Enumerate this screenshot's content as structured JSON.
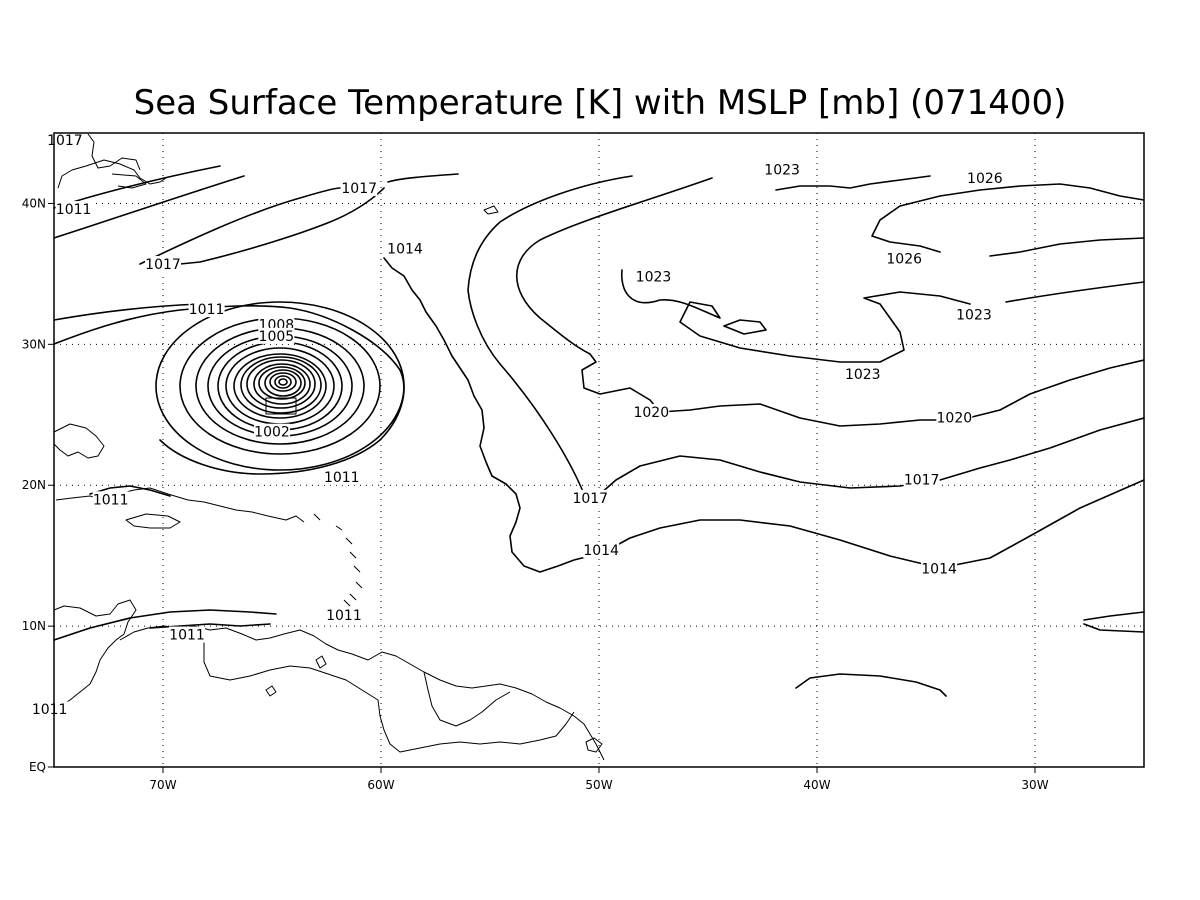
{
  "title": "Sea Surface Temperature [K] with MSLP [mb] (071400)",
  "map": {
    "lon_range": [
      -75,
      -25
    ],
    "lat_range": [
      0,
      45
    ],
    "x_ticks": [
      {
        "lon": -70,
        "label": "70W"
      },
      {
        "lon": -60,
        "label": "60W"
      },
      {
        "lon": -50,
        "label": "50W"
      },
      {
        "lon": -40,
        "label": "40W"
      },
      {
        "lon": -30,
        "label": "30W"
      }
    ],
    "y_ticks": [
      {
        "lat": 0,
        "label": "EQ"
      },
      {
        "lat": 10,
        "label": "10N"
      },
      {
        "lat": 20,
        "label": "20N"
      },
      {
        "lat": 30,
        "label": "30N"
      },
      {
        "lat": 40,
        "label": "40N"
      }
    ],
    "grid": "dotted"
  },
  "isobar_labels": [
    {
      "text": "1017",
      "lon": -74.5,
      "lat": 44.5,
      "name": "label-1017-northwest"
    },
    {
      "text": "1011",
      "lon": -74.1,
      "lat": 39.6,
      "name": "label-1011-northwest"
    },
    {
      "text": "1017",
      "lon": -61.0,
      "lat": 41.1,
      "name": "label-1017-north"
    },
    {
      "text": "1017",
      "lon": -70.0,
      "lat": 35.7,
      "name": "label-1017-west"
    },
    {
      "text": "1014",
      "lon": -58.9,
      "lat": 36.8,
      "name": "label-1014-north"
    },
    {
      "text": "1011",
      "lon": -68.0,
      "lat": 32.5,
      "name": "label-1011-center"
    },
    {
      "text": "1008",
      "lon": -64.8,
      "lat": 31.4,
      "name": "label-1008"
    },
    {
      "text": "1005",
      "lon": -64.8,
      "lat": 30.6,
      "name": "label-1005"
    },
    {
      "text": "1002",
      "lon": -65.0,
      "lat": 23.8,
      "name": "label-1002"
    },
    {
      "text": "1011",
      "lon": -61.8,
      "lat": 20.6,
      "name": "label-1011-south"
    },
    {
      "text": "1011",
      "lon": -72.4,
      "lat": 19.0,
      "name": "label-1011-caribbean"
    },
    {
      "text": "1011",
      "lon": -61.7,
      "lat": 10.8,
      "name": "label-1011-venezuela"
    },
    {
      "text": "1011",
      "lon": -68.9,
      "lat": 9.4,
      "name": "label-1011-venezuela-west"
    },
    {
      "text": "1011",
      "lon": -75.2,
      "lat": 4.1,
      "name": "label-1011-colombia"
    },
    {
      "text": "1023",
      "lon": -41.6,
      "lat": 42.4,
      "name": "label-1023-north"
    },
    {
      "text": "1026",
      "lon": -32.3,
      "lat": 41.8,
      "name": "label-1026-north"
    },
    {
      "text": "1026",
      "lon": -36.0,
      "lat": 36.1,
      "name": "label-1026-south"
    },
    {
      "text": "1023",
      "lon": -47.5,
      "lat": 34.8,
      "name": "label-1023-west"
    },
    {
      "text": "1023",
      "lon": -32.8,
      "lat": 32.1,
      "name": "label-1023-east"
    },
    {
      "text": "1023",
      "lon": -37.9,
      "lat": 27.9,
      "name": "label-1023-south"
    },
    {
      "text": "1020",
      "lon": -47.6,
      "lat": 25.2,
      "name": "label-1020-west"
    },
    {
      "text": "1020",
      "lon": -33.7,
      "lat": 24.8,
      "name": "label-1020-east"
    },
    {
      "text": "1017",
      "lon": -50.4,
      "lat": 19.1,
      "name": "label-1017-mid"
    },
    {
      "text": "1017",
      "lon": -35.2,
      "lat": 20.4,
      "name": "label-1017-east"
    },
    {
      "text": "1014",
      "lon": -49.9,
      "lat": 15.4,
      "name": "label-1014-mid"
    },
    {
      "text": "1014",
      "lon": -34.4,
      "lat": 14.1,
      "name": "label-1014-east"
    }
  ],
  "colors": {
    "line": "#000000",
    "background": "#ffffff"
  }
}
